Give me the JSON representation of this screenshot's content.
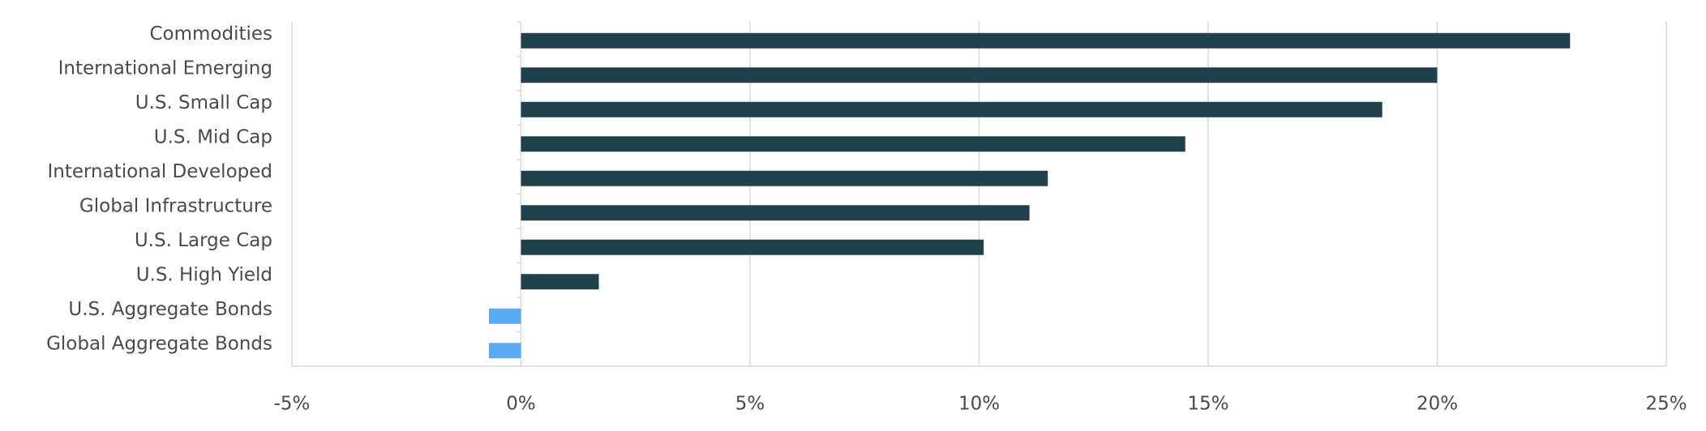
{
  "chart_data": {
    "type": "bar",
    "orientation": "horizontal",
    "categories": [
      "Commodities",
      "International Emerging",
      "U.S. Small Cap",
      "U.S. Mid Cap",
      "International Developed",
      "Global Infrastructure",
      "U.S. Large Cap",
      "U.S. High Yield",
      "U.S. Aggregate Bonds",
      "Global Aggregate Bonds"
    ],
    "values": [
      22.9,
      20.0,
      18.8,
      14.5,
      11.5,
      11.1,
      10.1,
      1.7,
      -0.7,
      -0.7
    ],
    "colors": [
      "#1f424a",
      "#1f424a",
      "#1f424a",
      "#1f424a",
      "#1f424a",
      "#1f424a",
      "#1f424a",
      "#1f424a",
      "#5aabf5",
      "#5aabf5"
    ],
    "xlim": [
      -5,
      25
    ],
    "xticks": [
      {
        "value": -5,
        "label": "-5%"
      },
      {
        "value": 0,
        "label": "0%"
      },
      {
        "value": 5,
        "label": "5%"
      },
      {
        "value": 10,
        "label": "10%"
      },
      {
        "value": 15,
        "label": "15%"
      },
      {
        "value": 20,
        "label": "20%"
      },
      {
        "value": 25,
        "label": "25%"
      }
    ],
    "grid": true
  }
}
